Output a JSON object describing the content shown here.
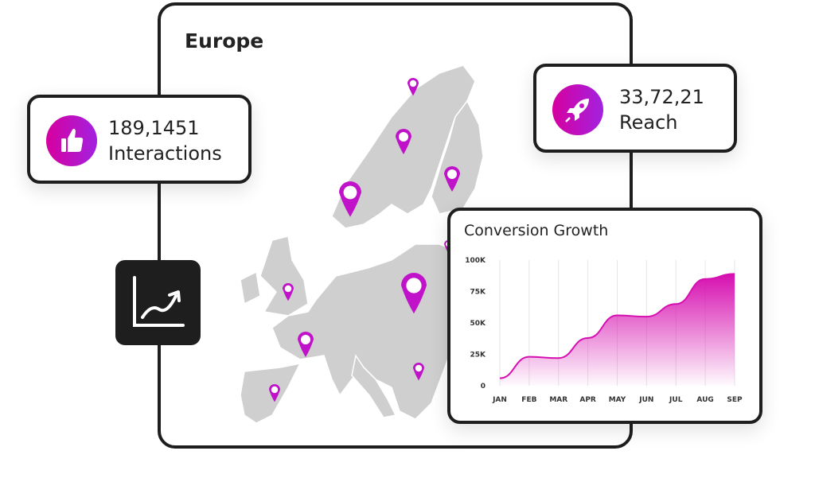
{
  "map_panel": {
    "title": "Europe",
    "pin_color": "#c013c9",
    "land_color": "#cfcfcf"
  },
  "interactions": {
    "value": "189,1451",
    "label": "Interactions",
    "icon": "thumbs-up-icon"
  },
  "reach": {
    "value": "33,72,21",
    "label": "Reach",
    "icon": "rocket-icon"
  },
  "trend_button": {
    "icon": "trending-up-chart-icon"
  },
  "accent_gradient": [
    "#d6009f",
    "#a322e0"
  ],
  "chart_data": {
    "type": "area",
    "title": "Conversion Growth",
    "categories": [
      "JAN",
      "FEB",
      "MAR",
      "APR",
      "MAY",
      "JUN",
      "JUL",
      "AUG",
      "SEP"
    ],
    "values": [
      6000,
      23000,
      22000,
      38000,
      56000,
      55000,
      65000,
      85000,
      89000
    ],
    "yticks": [
      "0",
      "25K",
      "50K",
      "75K",
      "100K"
    ],
    "ylim": [
      0,
      100000
    ],
    "grid": "vertical",
    "color": "#d60fb0"
  }
}
